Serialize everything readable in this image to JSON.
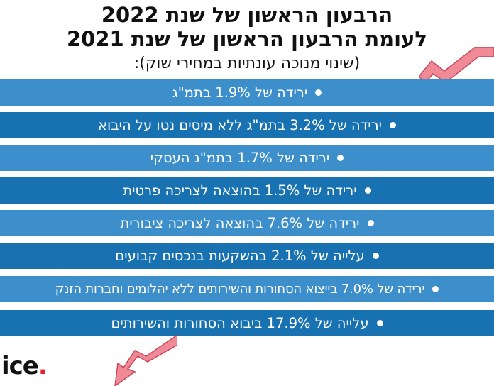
{
  "title": {
    "line1": "הרבעון הראשון של שנת 2022",
    "line2": "לעומת הרבעון הראשון של שנת 2021"
  },
  "subtitle": "(שינוי מנוכה עונתיות במחירי שוק):",
  "items": [
    {
      "text": "ירידה של 1.9% בתמ\"ג"
    },
    {
      "text": "ירידה של 3.2% בתמ\"ג ללא מיסים נטו על היבוא"
    },
    {
      "text": "ירידה של 1.7% בתמ\"ג העסקי"
    },
    {
      "text": "ירידה של 1.5% בהוצאה לצריכה פרטית"
    },
    {
      "text": "ירידה של 7.6% בהוצאה לצריכה ציבורית"
    },
    {
      "text": "עלייה של 2.1% בהשקעות בנכסים קבועים"
    },
    {
      "text": "ירידה של 7.0% בייצוא הסחורות והשירותים ללא יהלומים וחברות הזנק"
    },
    {
      "text": "עלייה של 17.9% ביבוא הסחורות והשירותים"
    }
  ],
  "logo": {
    "text": "ice",
    "dot": "."
  },
  "colors": {
    "row_light": "#3d8fcb",
    "row_dark": "#1872b2",
    "arrow_fill": "#f08a96",
    "arrow_stroke": "#c9495a",
    "logo_dot": "#e0232e"
  },
  "icons": {
    "decoration_top": "down-trend-arrow-icon",
    "decoration_bottom": "down-trend-arrow-icon",
    "bullet": "bullet-dot-icon"
  }
}
